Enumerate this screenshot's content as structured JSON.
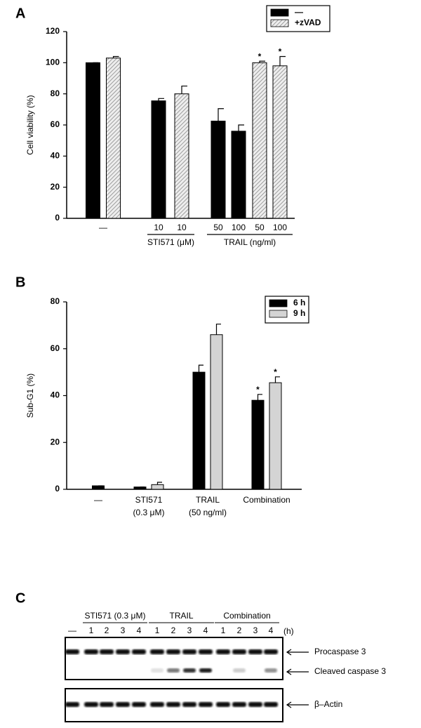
{
  "chart_data": [
    {
      "type": "bar",
      "panel_label": "A",
      "y_label": "Cell viability (%)",
      "categories": [
        "—",
        "10",
        "10",
        "50",
        "100",
        "50",
        "100"
      ],
      "groups": [
        {
          "label": "STI571 (μM)",
          "span": [
            1,
            2
          ]
        },
        {
          "label": "TRAIL (ng/ml)",
          "span": [
            3,
            6
          ]
        }
      ],
      "series": [
        {
          "name": "—",
          "color": "#000000",
          "values": [
            100,
            75.5,
            null,
            62.5,
            56,
            null,
            null
          ],
          "errors": [
            0,
            1.5,
            null,
            8,
            4,
            null,
            null
          ],
          "annotations": [
            null,
            null,
            null,
            null,
            null,
            null,
            null
          ]
        },
        {
          "name": "+zVAD",
          "color": "#8a8a8a",
          "hatch": true,
          "values": [
            103,
            null,
            80,
            null,
            null,
            100,
            98
          ],
          "errors": [
            1,
            null,
            5,
            null,
            null,
            1,
            6
          ],
          "annotations": [
            null,
            null,
            null,
            null,
            null,
            "*",
            "*"
          ]
        }
      ],
      "ylim": [
        0,
        120
      ],
      "yticks": [
        0,
        20,
        40,
        60,
        80,
        100,
        120
      ],
      "legend": "top-right"
    },
    {
      "type": "bar",
      "panel_label": "B",
      "y_label": "Sub-G1 (%)",
      "categories": [
        "—",
        "STI571",
        "TRAIL",
        "Combination"
      ],
      "category_notes": [
        null,
        "(0.3 μM)",
        "(50 ng/ml)",
        null
      ],
      "series": [
        {
          "name": "6 h",
          "color": "#000000",
          "values": [
            1.5,
            1,
            50,
            38
          ],
          "errors": [
            0,
            0,
            3,
            2.5
          ],
          "annotations": [
            null,
            null,
            null,
            "*"
          ]
        },
        {
          "name": "9 h",
          "color": "#d4d4d4",
          "values": [
            null,
            2,
            66,
            45.5
          ],
          "errors": [
            null,
            1,
            4.5,
            2.5
          ],
          "annotations": [
            null,
            null,
            null,
            "*"
          ]
        }
      ],
      "ylim": [
        0,
        80
      ],
      "yticks": [
        0,
        20,
        40,
        60,
        80
      ],
      "legend": "top-right"
    }
  ],
  "panel_c": {
    "label": "C",
    "control": "—",
    "unit": "(h)",
    "groups": [
      {
        "label": "STI571 (0.3 μM)",
        "lanes": [
          "1",
          "2",
          "3",
          "4"
        ]
      },
      {
        "label": "TRAIL",
        "lanes": [
          "1",
          "2",
          "3",
          "4"
        ]
      },
      {
        "label": "Combination",
        "lanes": [
          "1",
          "2",
          "3",
          "4"
        ]
      }
    ],
    "rows": [
      "Procaspase 3",
      "Cleaved caspase 3",
      "β–Actin"
    ]
  }
}
